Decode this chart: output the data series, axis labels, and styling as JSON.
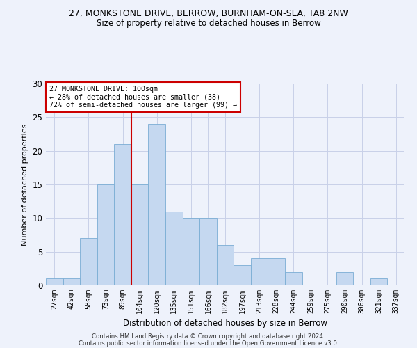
{
  "title1": "27, MONKSTONE DRIVE, BERROW, BURNHAM-ON-SEA, TA8 2NW",
  "title2": "Size of property relative to detached houses in Berrow",
  "xlabel": "Distribution of detached houses by size in Berrow",
  "ylabel": "Number of detached properties",
  "categories": [
    "27sqm",
    "42sqm",
    "58sqm",
    "73sqm",
    "89sqm",
    "104sqm",
    "120sqm",
    "135sqm",
    "151sqm",
    "166sqm",
    "182sqm",
    "197sqm",
    "213sqm",
    "228sqm",
    "244sqm",
    "259sqm",
    "275sqm",
    "290sqm",
    "306sqm",
    "321sqm",
    "337sqm"
  ],
  "values": [
    1,
    1,
    7,
    15,
    21,
    15,
    24,
    11,
    10,
    10,
    6,
    3,
    4,
    4,
    2,
    0,
    0,
    2,
    0,
    1,
    0
  ],
  "bar_color": "#c5d8f0",
  "bar_edge_color": "#7aadd4",
  "background_color": "#eef2fb",
  "annotation_title": "27 MONKSTONE DRIVE: 100sqm",
  "annotation_line1": "← 28% of detached houses are smaller (38)",
  "annotation_line2": "72% of semi-detached houses are larger (99) →",
  "annotation_box_color": "#ffffff",
  "annotation_box_edge": "#cc0000",
  "property_line_color": "#cc0000",
  "ylim": [
    0,
    30
  ],
  "grid_color": "#c8d0e8",
  "footer1": "Contains HM Land Registry data © Crown copyright and database right 2024.",
  "footer2": "Contains public sector information licensed under the Open Government Licence v3.0."
}
